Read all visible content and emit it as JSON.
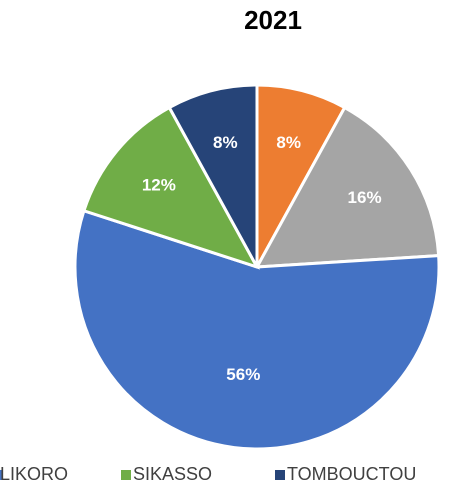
{
  "chart_data": {
    "type": "pie",
    "title": "2021",
    "categories": [
      null,
      null,
      "LIKORO",
      "SIKASSO",
      "TOMBOUCTOU"
    ],
    "values": [
      8,
      16,
      56,
      12,
      8
    ],
    "value_labels": [
      "8%",
      "16%",
      "56%",
      "12%",
      "8%"
    ],
    "colors": [
      "#ed7d31",
      "#a5a5a5",
      "#4472c4",
      "#70ad47",
      "#264478"
    ],
    "legend": "bottom"
  }
}
